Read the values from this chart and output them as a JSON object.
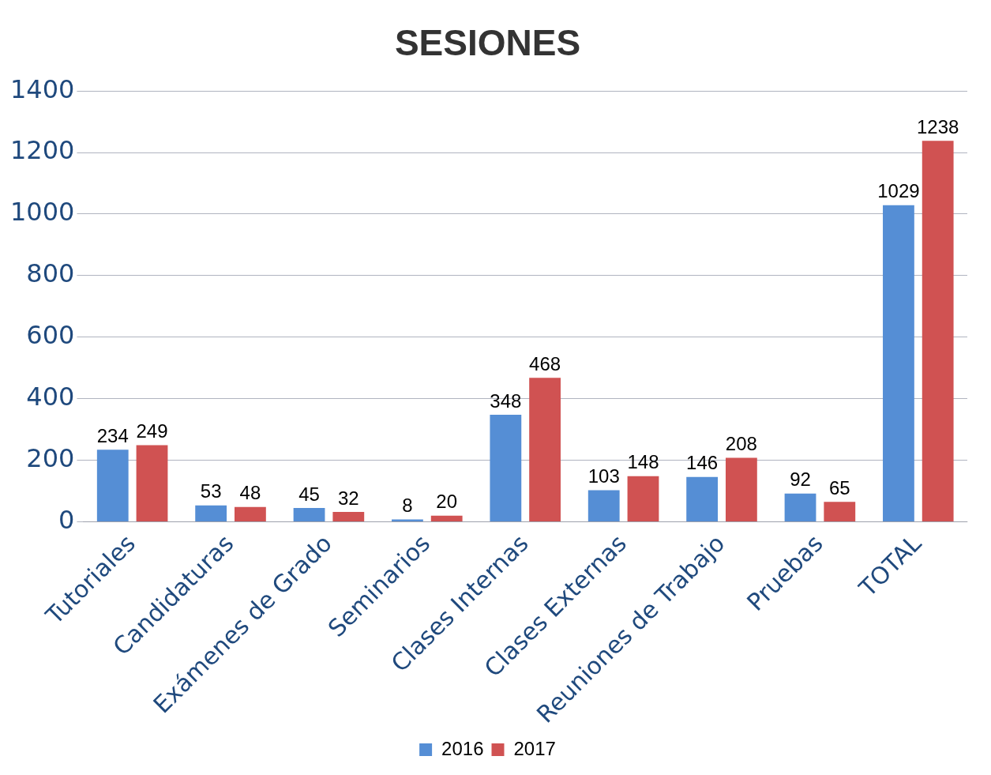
{
  "chart_data": {
    "type": "bar",
    "title": "SESIONES",
    "categories": [
      "Tutoriales",
      "Candidaturas",
      "Exámenes de Grado",
      "Seminarios",
      "Clases Internas",
      "Clases Externas",
      "Reuniones de Trabajo",
      "Pruebas",
      "TOTAL"
    ],
    "series": [
      {
        "name": "2016",
        "color": "#558ed5",
        "values": [
          234,
          53,
          45,
          8,
          348,
          103,
          146,
          92,
          1029
        ]
      },
      {
        "name": "2017",
        "color": "#d05252",
        "values": [
          249,
          48,
          32,
          20,
          468,
          148,
          208,
          65,
          1238
        ]
      }
    ],
    "ylim": [
      0,
      1400
    ],
    "yticks": [
      0,
      200,
      400,
      600,
      800,
      1000,
      1200,
      1400
    ],
    "grid": "y",
    "legend": "bottom",
    "data_labels": true
  }
}
